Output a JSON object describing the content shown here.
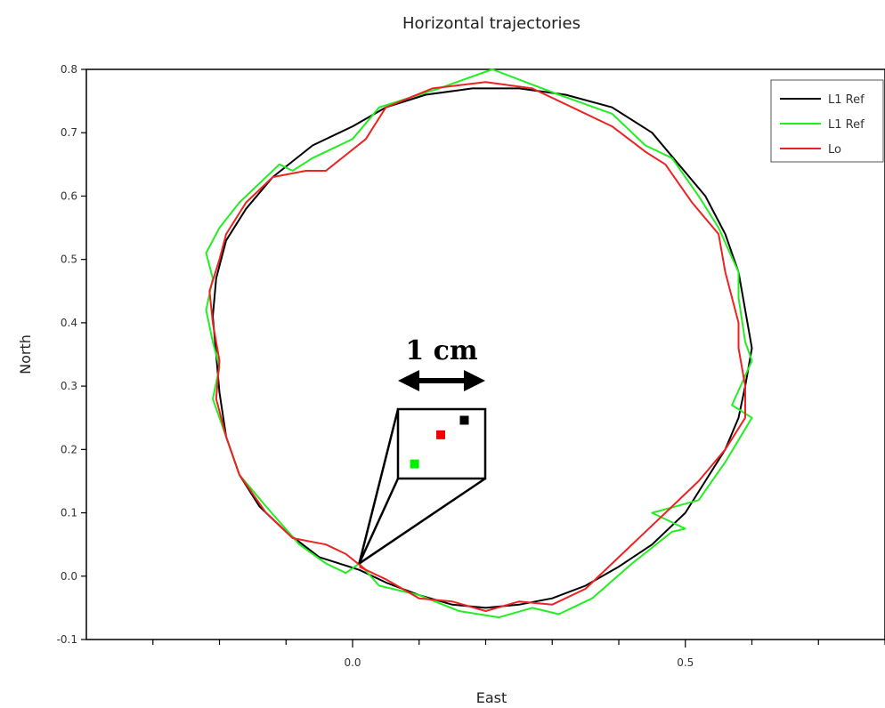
{
  "chart_data": {
    "type": "line",
    "title": "Horizontal trajectories",
    "xlabel": "East",
    "ylabel": "North",
    "xlim": [
      -0.4,
      0.8
    ],
    "ylim": [
      -0.1,
      0.8
    ],
    "xticks": [
      0.0,
      0.5
    ],
    "xtick_labels": [
      "0.0",
      "0.5"
    ],
    "yticks": [
      -0.1,
      0.0,
      0.1,
      0.2,
      0.3,
      0.4,
      0.5,
      0.6,
      0.7,
      0.8
    ],
    "ytick_labels": [
      "-0.1",
      "0.0",
      "0.1",
      "0.2",
      "0.3",
      "0.4",
      "0.5",
      "0.6",
      "0.7",
      "0.8"
    ],
    "grid": false,
    "legend_position": "top-right",
    "series": [
      {
        "name": "L1 Ref",
        "color": "#000000",
        "points": [
          [
            0.01,
            0.01
          ],
          [
            0.05,
            -0.01
          ],
          [
            0.1,
            -0.03
          ],
          [
            0.15,
            -0.045
          ],
          [
            0.2,
            -0.05
          ],
          [
            0.25,
            -0.045
          ],
          [
            0.3,
            -0.035
          ],
          [
            0.35,
            -0.015
          ],
          [
            0.4,
            0.015
          ],
          [
            0.45,
            0.05
          ],
          [
            0.5,
            0.1
          ],
          [
            0.53,
            0.15
          ],
          [
            0.56,
            0.2
          ],
          [
            0.58,
            0.25
          ],
          [
            0.59,
            0.3
          ],
          [
            0.6,
            0.36
          ],
          [
            0.59,
            0.42
          ],
          [
            0.58,
            0.48
          ],
          [
            0.56,
            0.54
          ],
          [
            0.53,
            0.6
          ],
          [
            0.49,
            0.65
          ],
          [
            0.45,
            0.7
          ],
          [
            0.39,
            0.74
          ],
          [
            0.32,
            0.76
          ],
          [
            0.25,
            0.77
          ],
          [
            0.18,
            0.77
          ],
          [
            0.11,
            0.76
          ],
          [
            0.05,
            0.74
          ],
          [
            0.0,
            0.71
          ],
          [
            -0.06,
            0.68
          ],
          [
            -0.12,
            0.63
          ],
          [
            -0.16,
            0.58
          ],
          [
            -0.19,
            0.53
          ],
          [
            -0.205,
            0.47
          ],
          [
            -0.21,
            0.41
          ],
          [
            -0.205,
            0.35
          ],
          [
            -0.2,
            0.29
          ],
          [
            -0.19,
            0.22
          ],
          [
            -0.17,
            0.16
          ],
          [
            -0.14,
            0.11
          ],
          [
            -0.1,
            0.07
          ],
          [
            -0.05,
            0.03
          ],
          [
            0.01,
            0.01
          ]
        ]
      },
      {
        "name": "L1 Ref",
        "color": "#22ee22",
        "points": [
          [
            0.01,
            0.02
          ],
          [
            0.04,
            -0.015
          ],
          [
            0.1,
            -0.03
          ],
          [
            0.16,
            -0.055
          ],
          [
            0.22,
            -0.065
          ],
          [
            0.27,
            -0.05
          ],
          [
            0.31,
            -0.06
          ],
          [
            0.36,
            -0.035
          ],
          [
            0.42,
            0.02
          ],
          [
            0.48,
            0.07
          ],
          [
            0.5,
            0.075
          ],
          [
            0.45,
            0.1
          ],
          [
            0.52,
            0.12
          ],
          [
            0.56,
            0.18
          ],
          [
            0.6,
            0.25
          ],
          [
            0.57,
            0.27
          ],
          [
            0.6,
            0.34
          ],
          [
            0.59,
            0.37
          ],
          [
            0.58,
            0.44
          ],
          [
            0.58,
            0.48
          ],
          [
            0.55,
            0.55
          ],
          [
            0.52,
            0.6
          ],
          [
            0.48,
            0.66
          ],
          [
            0.44,
            0.68
          ],
          [
            0.39,
            0.73
          ],
          [
            0.31,
            0.76
          ],
          [
            0.21,
            0.8
          ],
          [
            0.13,
            0.77
          ],
          [
            0.04,
            0.74
          ],
          [
            0.0,
            0.69
          ],
          [
            -0.06,
            0.66
          ],
          [
            -0.09,
            0.64
          ],
          [
            -0.11,
            0.65
          ],
          [
            -0.17,
            0.59
          ],
          [
            -0.2,
            0.55
          ],
          [
            -0.22,
            0.51
          ],
          [
            -0.21,
            0.47
          ],
          [
            -0.22,
            0.42
          ],
          [
            -0.21,
            0.37
          ],
          [
            -0.2,
            0.33
          ],
          [
            -0.21,
            0.28
          ],
          [
            -0.19,
            0.22
          ],
          [
            -0.17,
            0.16
          ],
          [
            -0.13,
            0.11
          ],
          [
            -0.08,
            0.05
          ],
          [
            -0.04,
            0.02
          ],
          [
            -0.01,
            0.005
          ],
          [
            0.01,
            0.02
          ]
        ]
      },
      {
        "name": "Lo",
        "color": "#ee2222",
        "points": [
          [
            0.01,
            0.015
          ],
          [
            0.05,
            -0.005
          ],
          [
            0.1,
            -0.035
          ],
          [
            0.15,
            -0.04
          ],
          [
            0.2,
            -0.055
          ],
          [
            0.25,
            -0.04
          ],
          [
            0.3,
            -0.045
          ],
          [
            0.35,
            -0.02
          ],
          [
            0.4,
            0.03
          ],
          [
            0.45,
            0.08
          ],
          [
            0.47,
            0.1
          ],
          [
            0.52,
            0.15
          ],
          [
            0.56,
            0.2
          ],
          [
            0.59,
            0.25
          ],
          [
            0.59,
            0.3
          ],
          [
            0.58,
            0.36
          ],
          [
            0.58,
            0.4
          ],
          [
            0.56,
            0.48
          ],
          [
            0.55,
            0.54
          ],
          [
            0.51,
            0.59
          ],
          [
            0.47,
            0.65
          ],
          [
            0.44,
            0.67
          ],
          [
            0.39,
            0.71
          ],
          [
            0.33,
            0.74
          ],
          [
            0.27,
            0.77
          ],
          [
            0.2,
            0.78
          ],
          [
            0.12,
            0.77
          ],
          [
            0.05,
            0.74
          ],
          [
            0.02,
            0.69
          ],
          [
            -0.04,
            0.64
          ],
          [
            -0.07,
            0.64
          ],
          [
            -0.12,
            0.63
          ],
          [
            -0.16,
            0.59
          ],
          [
            -0.19,
            0.54
          ],
          [
            -0.2,
            0.5
          ],
          [
            -0.215,
            0.45
          ],
          [
            -0.21,
            0.4
          ],
          [
            -0.2,
            0.34
          ],
          [
            -0.205,
            0.28
          ],
          [
            -0.19,
            0.22
          ],
          [
            -0.17,
            0.16
          ],
          [
            -0.13,
            0.1
          ],
          [
            -0.09,
            0.06
          ],
          [
            -0.04,
            0.05
          ],
          [
            -0.01,
            0.035
          ],
          [
            0.02,
            0.01
          ],
          [
            0.01,
            0.015
          ]
        ]
      }
    ],
    "inset": {
      "scale_label": "1 cm",
      "anchor": [
        0.01,
        0.02
      ],
      "markers": [
        {
          "color": "#000000",
          "fx": 0.76,
          "fy": 0.16
        },
        {
          "color": "#ee0000",
          "fx": 0.49,
          "fy": 0.37
        },
        {
          "color": "#00ee00",
          "fx": 0.19,
          "fy": 0.79
        }
      ]
    }
  }
}
